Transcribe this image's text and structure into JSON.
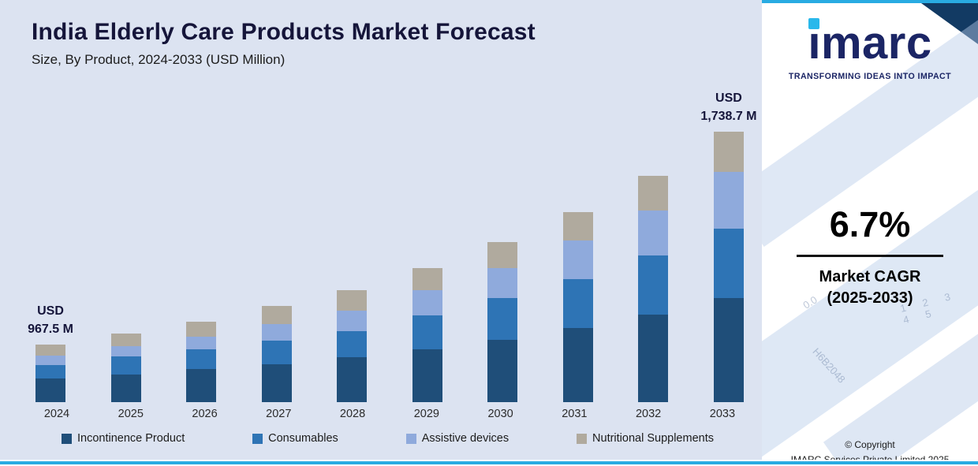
{
  "page": {
    "background": "#ffffff",
    "accent_color": "#29abe2",
    "panel_background": "#dce3f1"
  },
  "header": {
    "title": "India Elderly Care Products Market Forecast",
    "subtitle": "Size, By Product, 2024-2033 (USD Million)"
  },
  "chart_data": {
    "type": "bar",
    "stacked": true,
    "title": "India Elderly Care Products Market Forecast",
    "subtitle": "Size, By Product, 2024-2033 (USD Million)",
    "unit": "USD Million",
    "categories": [
      "2024",
      "2025",
      "2026",
      "2027",
      "2028",
      "2029",
      "2030",
      "2031",
      "2032",
      "2033"
    ],
    "series": [
      {
        "name": "Incontinence Product",
        "color": "#1f4e79",
        "values": [
          30,
          35,
          42,
          48,
          57,
          67,
          79,
          94,
          111,
          132
        ]
      },
      {
        "name": "Consumables",
        "color": "#2e74b5",
        "values": [
          17,
          23,
          25,
          30,
          33,
          43,
          53,
          62,
          75,
          88
        ]
      },
      {
        "name": "Assistive devices",
        "color": "#8faadc",
        "values": [
          12,
          13,
          16,
          21,
          26,
          32,
          38,
          49,
          57,
          72
        ]
      },
      {
        "name": "Nutritional Supplements",
        "color": "#b0aa9e",
        "values": [
          14,
          16,
          19,
          23,
          26,
          28,
          33,
          36,
          44,
          51
        ]
      }
    ],
    "value_note": "series values are relative stacked-bar heights estimated from the image; only the 2024 and 2033 totals are labeled in the figure",
    "totals_labeled": {
      "2024_usd_million": 967.5,
      "2033_usd_million": 1738.7
    },
    "annotations": [
      {
        "category": "2024",
        "lines": [
          "USD",
          "967.5 M"
        ]
      },
      {
        "category": "2033",
        "lines": [
          "USD",
          "1,738.7 M"
        ]
      }
    ],
    "legend_position": "bottom",
    "grid": false,
    "y_axis_visible": false
  },
  "sidebar": {
    "logo_text": "imarc",
    "tagline": "TRANSFORMING IDEAS INTO IMPACT",
    "cagr_value": "6.7%",
    "cagr_label": "Market CAGR",
    "cagr_period": "(2025-2033)",
    "copyright_line1": "© Copyright",
    "copyright_line2": "IMARC Services Private Limited 2025",
    "watermarks": [
      "0.0",
      "1 2 3 4 5",
      "H6B2048"
    ]
  }
}
